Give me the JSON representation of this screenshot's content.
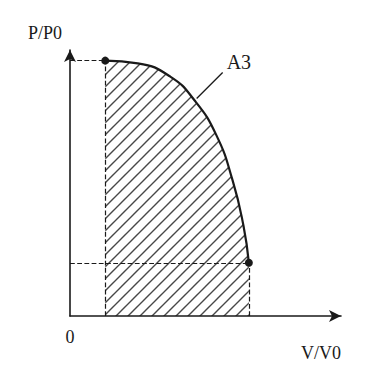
{
  "chart_data": {
    "type": "line",
    "x_label": "V/V0",
    "y_label": "P/P0",
    "annotation": "A3",
    "x": [
      0.13,
      0.25,
      0.37,
      0.46,
      0.54,
      0.6,
      0.64,
      0.66
    ],
    "values": [
      0.96,
      0.95,
      0.9,
      0.81,
      0.68,
      0.51,
      0.34,
      0.2
    ],
    "color": "#1a1a1a",
    "marker": "circle",
    "line_style": "solid",
    "xlim": [
      0,
      1
    ],
    "ylim": [
      0,
      1
    ],
    "xticks": [
      0
    ],
    "yticks": [],
    "tick_labels": "x",
    "grid": false
  }
}
